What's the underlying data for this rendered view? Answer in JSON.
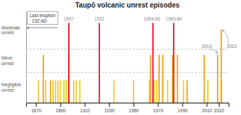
{
  "chart_data": {
    "type": "bar",
    "title": "Taupō volcanic unrest episodes",
    "x": [
      1872,
      1876,
      1878,
      1882,
      1884,
      1886,
      1888,
      1890,
      1893,
      1895,
      1897,
      1897,
      1901,
      1903,
      1906,
      1922,
      1934,
      1950,
      1963,
      1964,
      1966,
      1967,
      1969,
      1971,
      1974,
      1978,
      1982,
      1983,
      1986,
      1991,
      1994,
      2008,
      2011,
      2019,
      2022,
      2022
    ],
    "values": [
      0.28,
      0.6,
      0.28,
      0.28,
      0.28,
      0.28,
      0.28,
      0.28,
      0.28,
      0.28,
      0.6,
      1.0,
      0.28,
      0.28,
      0.28,
      1.0,
      0.28,
      0.28,
      0.28,
      0.6,
      1.0,
      0.28,
      0.28,
      0.6,
      0.6,
      0.28,
      0.6,
      1.0,
      0.6,
      0.28,
      0.28,
      0.6,
      0.28,
      0.6,
      0.28,
      0.92
    ],
    "colors": [
      "#f5c518",
      "#f59b00",
      "#f5c518",
      "#f59b00",
      "#f5c518",
      "#f5c518",
      "#f5c518",
      "#f5c518",
      "#f5c518",
      "#f5c518",
      "#f59b00",
      "#e8001c",
      "#f5c518",
      "#f5c518",
      "#f5c518",
      "#e8001c",
      "#f5c518",
      "#f5c518",
      "#f5c518",
      "#f59b00",
      "#e8001c",
      "#f5c518",
      "#f5c518",
      "#f59b00",
      "#f59b00",
      "#f5c518",
      "#f59b00",
      "#e8001c",
      "#f59b00",
      "#f5c518",
      "#f59b00",
      "#f59b00",
      "#f5c518",
      "#f59b00",
      "#f5c518",
      "#f59b00"
    ],
    "xlim": [
      1862,
      2028
    ],
    "xticks": [
      1870,
      1890,
      1910,
      1930,
      1950,
      1970,
      1990,
      2010,
      2020
    ],
    "ylim": [
      0,
      1.15
    ],
    "grid": false,
    "tick_labels": "x",
    "reference_lines": [
      0.38,
      0.67
    ],
    "band_labels": [
      "Negligible\nunrest",
      "Minor\nunrest",
      "Moderate\nunrest"
    ],
    "event_labels": [
      {
        "x": 1897,
        "text": "1897"
      },
      {
        "x": 1922,
        "text": "1922"
      },
      {
        "x": 1965,
        "text": "1964-65"
      },
      {
        "x": 1983,
        "text": "1983-84"
      }
    ],
    "annotations": [
      {
        "text": "2019",
        "x": 2019,
        "y": 0.6
      },
      {
        "text": "2022",
        "x": 2022,
        "y": 0.92
      }
    ],
    "box_text": "Last eruption\n  232 AD"
  }
}
